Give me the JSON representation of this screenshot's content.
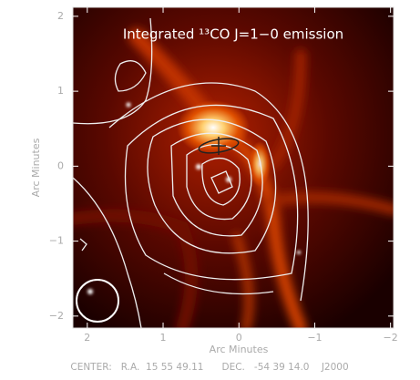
{
  "chart_data": {
    "type": "image",
    "title": "Integrated ¹³CO J=1−0 emission",
    "x_label": "Arc Minutes",
    "y_label": "Arc Minutes",
    "footer": "CENTER:   R.A.  15 55 49.11      DEC.   -54 39 14.0    J2000",
    "xlim": [
      2.19,
      -2.04
    ],
    "ylim": [
      -2.16,
      2.12
    ],
    "xticks": [
      2,
      1,
      0,
      {
        "value": -1,
        "label": "−1"
      },
      {
        "value": -2,
        "label": "−2"
      }
    ],
    "yticks": [
      {
        "value": -2,
        "label": "−2"
      },
      {
        "value": -1,
        "label": "−1"
      },
      0,
      1,
      2
    ]
  }
}
